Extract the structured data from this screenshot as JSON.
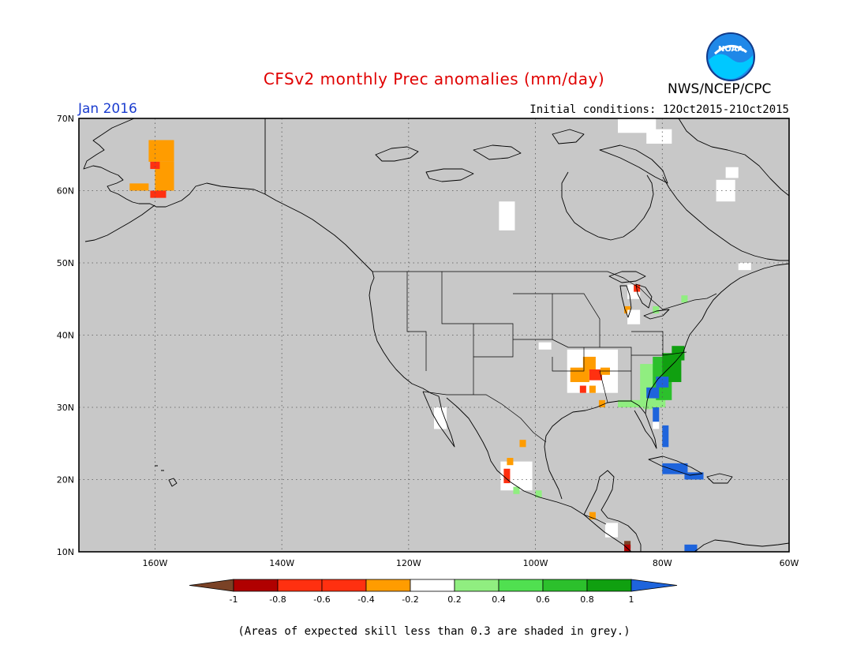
{
  "title": "CFSv2 monthly Prec anomalies (mm/day)",
  "organization": "NWS/NCEP/CPC",
  "logo_text": "NOAA",
  "period": "Jan 2016",
  "initial_conditions": "Initial conditions: 12Oct2015-21Oct2015",
  "footnote": "(Areas of expected skill less than 0.3 are shaded in grey.)",
  "map": {
    "lon_range": [
      -172,
      -60
    ],
    "lat_range": [
      10,
      70
    ],
    "lon_ticks": [
      {
        "value": -160,
        "label": "160W"
      },
      {
        "value": -140,
        "label": "140W"
      },
      {
        "value": -120,
        "label": "120W"
      },
      {
        "value": -100,
        "label": "100W"
      },
      {
        "value": -80,
        "label": "80W"
      },
      {
        "value": -60,
        "label": "60W"
      }
    ],
    "lat_ticks": [
      {
        "value": 10,
        "label": "10N"
      },
      {
        "value": 20,
        "label": "20N"
      },
      {
        "value": 30,
        "label": "30N"
      },
      {
        "value": 40,
        "label": "40N"
      },
      {
        "value": 50,
        "label": "50N"
      },
      {
        "value": 60,
        "label": "60N"
      },
      {
        "value": 70,
        "label": "70N"
      }
    ],
    "colors": {
      "background": "#c8c8c8",
      "grid": "#555555",
      "coast": "#000000",
      "brown": "#7a4226",
      "dkred": "#b00000",
      "red": "#ff3010",
      "orange": "#ff9c00",
      "white": "#ffffff",
      "ltgreen": "#90ee80",
      "green": "#50e050",
      "mdgreen": "#2cc02c",
      "dkgreen": "#10a010",
      "blue": "#1e64dc"
    },
    "anomaly_cells": [
      {
        "lon": -159,
        "lat": 65.5,
        "w": 4,
        "h": 3,
        "c": "orange"
      },
      {
        "lon": -158.5,
        "lat": 62,
        "w": 3,
        "h": 4,
        "c": "orange"
      },
      {
        "lon": -160,
        "lat": 63.5,
        "w": 1.5,
        "h": 1,
        "c": "red"
      },
      {
        "lon": -162.5,
        "lat": 60.5,
        "w": 3,
        "h": 1,
        "c": "orange"
      },
      {
        "lon": -159.5,
        "lat": 59.5,
        "w": 2.5,
        "h": 1,
        "c": "red"
      },
      {
        "lon": -104.5,
        "lat": 56.5,
        "w": 2.5,
        "h": 4,
        "c": "white"
      },
      {
        "lon": -84,
        "lat": 69,
        "w": 6,
        "h": 2,
        "c": "white"
      },
      {
        "lon": -80.5,
        "lat": 67.5,
        "w": 4,
        "h": 2,
        "c": "white"
      },
      {
        "lon": -70,
        "lat": 60,
        "w": 3,
        "h": 3,
        "c": "white"
      },
      {
        "lon": -69,
        "lat": 62.5,
        "w": 2,
        "h": 1.5,
        "c": "white"
      },
      {
        "lon": -67,
        "lat": 49.5,
        "w": 2,
        "h": 1,
        "c": "white"
      },
      {
        "lon": -84.5,
        "lat": 46,
        "w": 2,
        "h": 2,
        "c": "white"
      },
      {
        "lon": -84,
        "lat": 46.5,
        "w": 1,
        "h": 1,
        "c": "red"
      },
      {
        "lon": -85.5,
        "lat": 43.5,
        "w": 1,
        "h": 1,
        "c": "orange"
      },
      {
        "lon": -84.5,
        "lat": 42.5,
        "w": 2,
        "h": 2,
        "c": "white"
      },
      {
        "lon": -81,
        "lat": 43.5,
        "w": 1,
        "h": 1,
        "c": "ltgreen"
      },
      {
        "lon": -76.5,
        "lat": 45,
        "w": 1,
        "h": 1,
        "c": "ltgreen"
      },
      {
        "lon": -91,
        "lat": 35,
        "w": 8,
        "h": 6,
        "c": "white"
      },
      {
        "lon": -91.5,
        "lat": 36,
        "w": 2,
        "h": 2,
        "c": "orange"
      },
      {
        "lon": -93,
        "lat": 34.5,
        "w": 3,
        "h": 2,
        "c": "orange"
      },
      {
        "lon": -90.5,
        "lat": 34.5,
        "w": 2,
        "h": 1.5,
        "c": "red"
      },
      {
        "lon": -89,
        "lat": 35,
        "w": 1.5,
        "h": 1,
        "c": "orange"
      },
      {
        "lon": -92.5,
        "lat": 32.5,
        "w": 1,
        "h": 1,
        "c": "red"
      },
      {
        "lon": -91,
        "lat": 32.5,
        "w": 1,
        "h": 1,
        "c": "orange"
      },
      {
        "lon": -89.5,
        "lat": 30.5,
        "w": 1,
        "h": 1,
        "c": "orange"
      },
      {
        "lon": -98.5,
        "lat": 38.5,
        "w": 2,
        "h": 1,
        "c": "white"
      },
      {
        "lon": -81.5,
        "lat": 33,
        "w": 4,
        "h": 6,
        "c": "ltgreen"
      },
      {
        "lon": -80,
        "lat": 34,
        "w": 3,
        "h": 6,
        "c": "mdgreen"
      },
      {
        "lon": -78.5,
        "lat": 35.5,
        "w": 3,
        "h": 4,
        "c": "dkgreen"
      },
      {
        "lon": -77.5,
        "lat": 37.5,
        "w": 2,
        "h": 2,
        "c": "dkgreen"
      },
      {
        "lon": -80,
        "lat": 33.5,
        "w": 2,
        "h": 1.5,
        "c": "blue"
      },
      {
        "lon": -81.5,
        "lat": 32,
        "w": 2,
        "h": 1.5,
        "c": "blue"
      },
      {
        "lon": -82,
        "lat": 30.5,
        "w": 2,
        "h": 1.5,
        "c": "ltgreen"
      },
      {
        "lon": -85,
        "lat": 30.5,
        "w": 4,
        "h": 1,
        "c": "ltgreen"
      },
      {
        "lon": -81,
        "lat": 29,
        "w": 1,
        "h": 2,
        "c": "blue"
      },
      {
        "lon": -81,
        "lat": 27.5,
        "w": 1,
        "h": 1,
        "c": "white"
      },
      {
        "lon": -79.5,
        "lat": 26,
        "w": 1,
        "h": 3,
        "c": "blue"
      },
      {
        "lon": -78,
        "lat": 21.5,
        "w": 4,
        "h": 1.5,
        "c": "blue"
      },
      {
        "lon": -75,
        "lat": 20.5,
        "w": 3,
        "h": 1,
        "c": "blue"
      },
      {
        "lon": -115,
        "lat": 28.5,
        "w": 2,
        "h": 3,
        "c": "white"
      },
      {
        "lon": -103,
        "lat": 20.5,
        "w": 5,
        "h": 4,
        "c": "white"
      },
      {
        "lon": -104.5,
        "lat": 20.5,
        "w": 1,
        "h": 2,
        "c": "red"
      },
      {
        "lon": -104,
        "lat": 22.5,
        "w": 1,
        "h": 1,
        "c": "orange"
      },
      {
        "lon": -102,
        "lat": 25,
        "w": 1,
        "h": 1,
        "c": "orange"
      },
      {
        "lon": -103,
        "lat": 18.5,
        "w": 1,
        "h": 1,
        "c": "ltgreen"
      },
      {
        "lon": -99.5,
        "lat": 18,
        "w": 1,
        "h": 1,
        "c": "ltgreen"
      },
      {
        "lon": -91,
        "lat": 15,
        "w": 1,
        "h": 1,
        "c": "orange"
      },
      {
        "lon": -88,
        "lat": 13,
        "w": 2,
        "h": 2,
        "c": "white"
      },
      {
        "lon": -85.5,
        "lat": 11,
        "w": 1,
        "h": 1,
        "c": "brown"
      },
      {
        "lon": -85.5,
        "lat": 10.5,
        "w": 1,
        "h": 1,
        "c": "dkred"
      },
      {
        "lon": -75.5,
        "lat": 10.5,
        "w": 2,
        "h": 1,
        "c": "blue"
      }
    ]
  },
  "colorbar": {
    "colors": [
      "brown",
      "dkred",
      "red",
      "red",
      "orange",
      "white",
      "ltgreen",
      "green",
      "mdgreen",
      "dkgreen",
      "blue"
    ],
    "labels": [
      "-1",
      "-0.8",
      "-0.6",
      "-0.4",
      "-0.2",
      "0.2",
      "0.4",
      "0.6",
      "0.8",
      "1"
    ]
  }
}
